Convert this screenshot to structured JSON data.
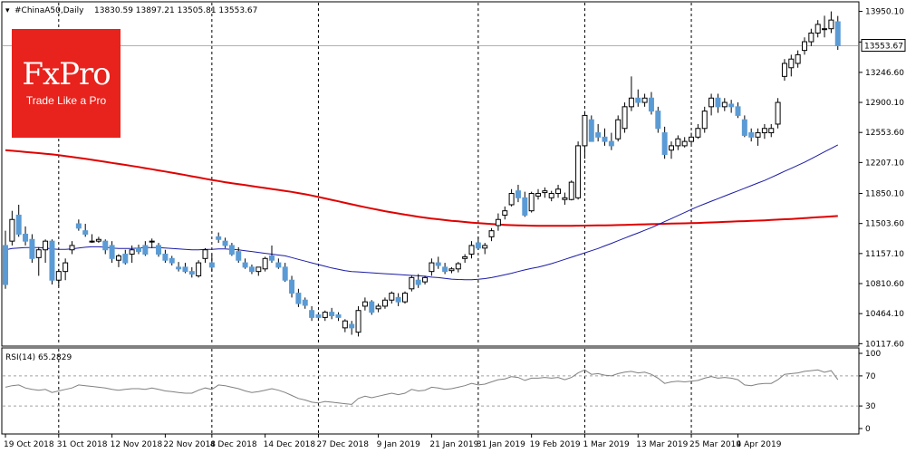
{
  "header": {
    "symbol": "#ChinaA50,Daily",
    "ohlc": "13830.59 13897.21 13505.81 13553.67"
  },
  "logo": {
    "title": "FxPro",
    "subtitle": "Trade Like a Pro"
  },
  "rsi_label": "RSI(14) 65.2829",
  "colors": {
    "bull": "#ffffff",
    "bear": "#5b9bd5",
    "candle_outline": "#000000",
    "ma_long": "#e00000",
    "ma_short": "#1a1aa6",
    "rsi_line": "#808080",
    "grid_dash": "#000000",
    "price_line": "#b0b0b0",
    "current_price_bg": "#ffffff"
  },
  "chart_data": {
    "type": "candlestick",
    "title": "",
    "price_ylim": [
      10100,
      14050
    ],
    "y_ticks": [
      "13950.10",
      "13596.60",
      "13246.60",
      "12900.10",
      "12553.60",
      "12207.10",
      "11850.10",
      "11503.60",
      "11157.10",
      "10810.60",
      "10464.10",
      "10117.60"
    ],
    "current_price": "13553.67",
    "x_tick_labels": [
      "19 Oct 2018",
      "31 Oct 2018",
      "12 Nov 2018",
      "22 Nov 2018",
      "4 Dec 2018",
      "14 Dec 2018",
      "27 Dec 2018",
      "9 Jan 2019",
      "21 Jan 2019",
      "31 Jan 2019",
      "19 Feb 2019",
      "1 Mar 2019",
      "13 Mar 2019",
      "25 Mar 2019",
      "4 Apr 2019"
    ],
    "x_tick_bar_index": [
      0,
      8,
      16,
      24,
      31,
      39,
      47,
      56,
      64,
      71,
      79,
      87,
      95,
      103,
      110
    ],
    "separator_bar_index": [
      8,
      31,
      47,
      71,
      87,
      103
    ],
    "candles": [
      [
        11250,
        11420,
        10750,
        10800
      ],
      [
        11300,
        11650,
        11250,
        11550
      ],
      [
        11600,
        11720,
        11350,
        11380
      ],
      [
        11380,
        11470,
        11250,
        11300
      ],
      [
        11320,
        11380,
        11050,
        11100
      ],
      [
        11110,
        11230,
        10900,
        11200
      ],
      [
        11200,
        11320,
        11050,
        11300
      ],
      [
        11300,
        11320,
        10800,
        10850
      ],
      [
        10850,
        10980,
        10780,
        10950
      ],
      [
        10950,
        11100,
        10850,
        11050
      ],
      [
        11200,
        11300,
        11150,
        11250
      ],
      [
        11500,
        11550,
        11420,
        11450
      ],
      [
        11420,
        11500,
        11350,
        11380
      ],
      [
        11300,
        11380,
        11280,
        11300
      ],
      [
        11300,
        11350,
        11280,
        11320
      ],
      [
        11300,
        11320,
        11150,
        11200
      ],
      [
        11250,
        11300,
        11050,
        11100
      ],
      [
        11080,
        11150,
        11000,
        11130
      ],
      [
        11150,
        11200,
        11030,
        11050
      ],
      [
        11150,
        11250,
        11050,
        11200
      ],
      [
        11220,
        11260,
        11150,
        11180
      ],
      [
        11250,
        11300,
        11130,
        11150
      ],
      [
        11300,
        11330,
        11220,
        11300
      ],
      [
        11250,
        11280,
        11120,
        11150
      ],
      [
        11150,
        11200,
        11050,
        11080
      ],
      [
        11100,
        11130,
        11020,
        11050
      ],
      [
        11000,
        11060,
        10950,
        10980
      ],
      [
        11000,
        11050,
        10930,
        10950
      ],
      [
        10950,
        11000,
        10880,
        10920
      ],
      [
        10900,
        11080,
        10880,
        11050
      ],
      [
        11100,
        11220,
        11050,
        11200
      ],
      [
        11050,
        11150,
        10950,
        11000
      ],
      [
        11350,
        11400,
        11280,
        11320
      ],
      [
        11300,
        11340,
        11220,
        11250
      ],
      [
        11250,
        11280,
        11130,
        11150
      ],
      [
        11180,
        11230,
        11050,
        11080
      ],
      [
        11050,
        11100,
        10980,
        11000
      ],
      [
        11000,
        11030,
        10920,
        10950
      ],
      [
        10950,
        11000,
        10900,
        11000
      ],
      [
        10980,
        11120,
        10950,
        11100
      ],
      [
        11130,
        11250,
        11050,
        11080
      ],
      [
        11050,
        11100,
        10980,
        11000
      ],
      [
        11000,
        11050,
        10830,
        10850
      ],
      [
        10850,
        10900,
        10650,
        10700
      ],
      [
        10700,
        10750,
        10540,
        10580
      ],
      [
        10620,
        10650,
        10520,
        10560
      ],
      [
        10500,
        10550,
        10380,
        10420
      ],
      [
        10450,
        10480,
        10380,
        10420
      ],
      [
        10420,
        10500,
        10380,
        10480
      ],
      [
        10480,
        10530,
        10400,
        10440
      ],
      [
        10450,
        10480,
        10380,
        10420
      ],
      [
        10300,
        10400,
        10250,
        10380
      ],
      [
        10340,
        10380,
        10220,
        10300
      ],
      [
        10250,
        10550,
        10200,
        10500
      ],
      [
        10550,
        10650,
        10500,
        10600
      ],
      [
        10600,
        10620,
        10450,
        10480
      ],
      [
        10520,
        10580,
        10480,
        10550
      ],
      [
        10550,
        10650,
        10520,
        10620
      ],
      [
        10620,
        10720,
        10580,
        10700
      ],
      [
        10650,
        10700,
        10550,
        10600
      ],
      [
        10600,
        10720,
        10580,
        10700
      ],
      [
        10750,
        10900,
        10720,
        10880
      ],
      [
        10850,
        10920,
        10760,
        10800
      ],
      [
        10830,
        10900,
        10800,
        10880
      ],
      [
        10950,
        11100,
        10900,
        11050
      ],
      [
        11050,
        11120,
        10980,
        11020
      ],
      [
        11000,
        11050,
        10920,
        10950
      ],
      [
        10960,
        11000,
        10930,
        10980
      ],
      [
        10980,
        11060,
        10940,
        11040
      ],
      [
        11100,
        11150,
        11050,
        11120
      ],
      [
        11150,
        11300,
        11100,
        11250
      ],
      [
        11280,
        11350,
        11200,
        11220
      ],
      [
        11220,
        11280,
        11150,
        11250
      ],
      [
        11350,
        11450,
        11300,
        11420
      ],
      [
        11480,
        11620,
        11420,
        11550
      ],
      [
        11600,
        11700,
        11550,
        11650
      ],
      [
        11720,
        11900,
        11700,
        11850
      ],
      [
        11880,
        11950,
        11750,
        11800
      ],
      [
        11800,
        11870,
        11580,
        11600
      ],
      [
        11650,
        11870,
        11630,
        11850
      ],
      [
        11820,
        11900,
        11780,
        11850
      ],
      [
        11860,
        11920,
        11800,
        11880
      ],
      [
        11800,
        11880,
        11760,
        11850
      ],
      [
        11850,
        11950,
        11800,
        11900
      ],
      [
        11780,
        11860,
        11720,
        11800
      ],
      [
        11780,
        12000,
        11770,
        11980
      ],
      [
        11800,
        12450,
        11780,
        12400
      ],
      [
        12400,
        12800,
        12250,
        12750
      ],
      [
        12700,
        12750,
        12450,
        12450
      ],
      [
        12550,
        12650,
        12450,
        12500
      ],
      [
        12500,
        12600,
        12400,
        12450
      ],
      [
        12450,
        12550,
        12350,
        12400
      ],
      [
        12480,
        12750,
        12450,
        12700
      ],
      [
        12600,
        12900,
        12550,
        12850
      ],
      [
        12850,
        13200,
        12800,
        12950
      ],
      [
        12950,
        13050,
        12850,
        12900
      ],
      [
        12900,
        13000,
        12850,
        12950
      ],
      [
        12950,
        13020,
        12760,
        12800
      ],
      [
        12800,
        12850,
        12550,
        12600
      ],
      [
        12550,
        12620,
        12250,
        12300
      ],
      [
        12350,
        12450,
        12250,
        12400
      ],
      [
        12400,
        12520,
        12350,
        12480
      ],
      [
        12400,
        12500,
        12380,
        12450
      ],
      [
        12450,
        12550,
        12420,
        12500
      ],
      [
        12500,
        12650,
        12480,
        12600
      ],
      [
        12600,
        12850,
        12550,
        12800
      ],
      [
        12850,
        13000,
        12750,
        12950
      ],
      [
        12950,
        13000,
        12780,
        12850
      ],
      [
        12850,
        12950,
        12800,
        12900
      ],
      [
        12880,
        12930,
        12780,
        12850
      ],
      [
        12850,
        12900,
        12720,
        12750
      ],
      [
        12700,
        12750,
        12500,
        12520
      ],
      [
        12550,
        12600,
        12450,
        12500
      ],
      [
        12500,
        12600,
        12400,
        12550
      ],
      [
        12550,
        12650,
        12480,
        12600
      ],
      [
        12550,
        12650,
        12500,
        12600
      ],
      [
        12650,
        12950,
        12600,
        12900
      ],
      [
        13200,
        13400,
        13150,
        13350
      ],
      [
        13300,
        13450,
        13200,
        13400
      ],
      [
        13350,
        13500,
        13300,
        13450
      ],
      [
        13500,
        13650,
        13450,
        13600
      ],
      [
        13600,
        13750,
        13550,
        13700
      ],
      [
        13700,
        13850,
        13650,
        13800
      ],
      [
        13750,
        13900,
        13650,
        13750
      ],
      [
        13750,
        13950,
        13700,
        13850
      ],
      [
        13830.59,
        13897.21,
        13505.81,
        13553.67
      ]
    ],
    "ma_short": [
      11200,
      11215,
      11220,
      11225,
      11225,
      11225,
      11220,
      11210,
      11205,
      11205,
      11210,
      11220,
      11230,
      11235,
      11235,
      11230,
      11220,
      11215,
      11215,
      11215,
      11220,
      11225,
      11225,
      11225,
      11220,
      11215,
      11210,
      11205,
      11200,
      11200,
      11205,
      11205,
      11210,
      11210,
      11205,
      11200,
      11190,
      11180,
      11170,
      11160,
      11150,
      11140,
      11130,
      11110,
      11090,
      11070,
      11050,
      11030,
      11010,
      10990,
      10975,
      10960,
      10950,
      10945,
      10940,
      10935,
      10930,
      10925,
      10920,
      10915,
      10910,
      10905,
      10900,
      10895,
      10885,
      10880,
      10870,
      10862,
      10858,
      10855,
      10855,
      10860,
      10868,
      10880,
      10895,
      10912,
      10930,
      10950,
      10968,
      10985,
      11000,
      11020,
      11040,
      11065,
      11090,
      11115,
      11140,
      11165,
      11190,
      11215,
      11245,
      11275,
      11305,
      11335,
      11365,
      11395,
      11425,
      11455,
      11490,
      11525,
      11560,
      11595,
      11630,
      11665,
      11700,
      11730,
      11760,
      11790,
      11820,
      11850,
      11880,
      11910,
      11940,
      11970,
      12000,
      12035,
      12070,
      12105,
      12140,
      12175,
      12210,
      12250,
      12290,
      12330,
      12370,
      12410
    ],
    "ma_long": [
      12350,
      12343,
      12336,
      12329,
      12322,
      12315,
      12308,
      12301,
      12292,
      12282,
      12271,
      12260,
      12249,
      12238,
      12226,
      12215,
      12203,
      12191,
      12179,
      12167,
      12155,
      12142,
      12129,
      12116,
      12103,
      12090,
      12076,
      12062,
      12048,
      12034,
      12020,
      12006,
      11993,
      11980,
      11968,
      11957,
      11946,
      11935,
      11924,
      11913,
      11902,
      11891,
      11880,
      11868,
      11855,
      11841,
      11826,
      11810,
      11793,
      11776,
      11759,
      11742,
      11725,
      11708,
      11692,
      11676,
      11661,
      11646,
      11632,
      11619,
      11606,
      11594,
      11582,
      11571,
      11561,
      11552,
      11543,
      11535,
      11528,
      11521,
      11514,
      11508,
      11502,
      11497,
      11492,
      11488,
      11485,
      11482,
      11480,
      11478,
      11477,
      11476,
      11476,
      11476,
      11476,
      11477,
      11478,
      11479,
      11480,
      11481,
      11482,
      11484,
      11486,
      11488,
      11490,
      11492,
      11494,
      11496,
      11498,
      11500,
      11502,
      11504,
      11506,
      11508,
      11510,
      11513,
      11516,
      11519,
      11522,
      11525,
      11528,
      11531,
      11534,
      11537,
      11540,
      11544,
      11548,
      11552,
      11556,
      11560,
      11565,
      11570,
      11575,
      11580,
      11585,
      11590
    ],
    "rsi": {
      "ylim": [
        0,
        100
      ],
      "y_ticks": [
        "100",
        "70",
        "30",
        "0"
      ],
      "levels": [
        70,
        30
      ],
      "values": [
        55,
        57,
        58,
        54,
        52,
        51,
        52,
        48,
        50,
        52,
        54,
        58,
        57,
        56,
        55,
        54,
        52,
        51,
        52,
        53,
        53,
        52,
        54,
        52,
        50,
        49,
        48,
        47,
        47,
        51,
        54,
        52,
        58,
        57,
        55,
        53,
        50,
        48,
        49,
        51,
        53,
        51,
        48,
        44,
        40,
        38,
        35,
        34,
        36,
        35,
        34,
        33,
        32,
        40,
        43,
        41,
        43,
        45,
        47,
        45,
        47,
        52,
        50,
        51,
        55,
        54,
        52,
        53,
        55,
        57,
        60,
        58,
        59,
        62,
        65,
        66,
        69,
        68,
        64,
        67,
        67,
        68,
        67,
        68,
        65,
        68,
        74,
        78,
        72,
        73,
        71,
        70,
        73,
        75,
        76,
        74,
        75,
        72,
        67,
        60,
        62,
        63,
        62,
        63,
        64,
        67,
        69,
        67,
        68,
        67,
        65,
        58,
        57,
        59,
        60,
        60,
        65,
        72,
        73,
        74,
        76,
        77,
        78,
        75,
        77,
        65
      ]
    }
  }
}
